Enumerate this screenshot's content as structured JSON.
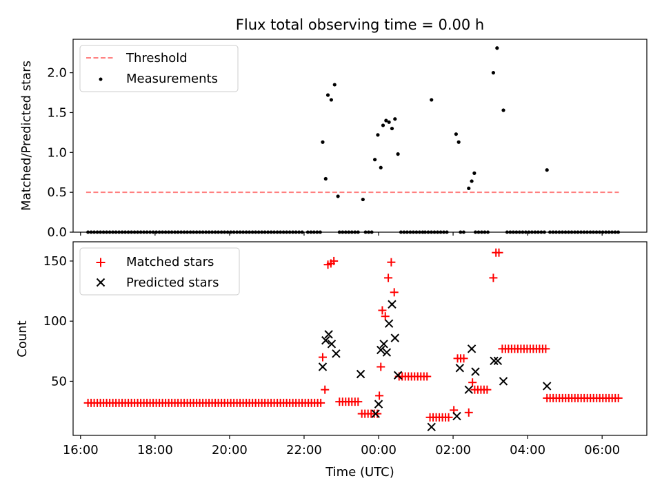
{
  "figure_title": "Flux total observing time = 0.00 h",
  "chart_data": [
    {
      "type": "scatter",
      "title": "Flux total observing time = 0.00 h",
      "xlabel": "",
      "ylabel": "Matched/Predicted stars",
      "xlim": [
        15.8,
        31.2
      ],
      "ylim": [
        0.0,
        2.42
      ],
      "yticks": [
        0.0,
        0.5,
        1.0,
        1.5,
        2.0
      ],
      "ytick_labels": [
        "0.0",
        "0.5",
        "1.0",
        "1.5",
        "2.0"
      ],
      "legend_position": "upper-left",
      "threshold": {
        "name": "Threshold",
        "value": 0.5,
        "x": [
          16.15,
          30.45
        ],
        "color": "#ff7f7f"
      },
      "series": [
        {
          "name": "Measurements",
          "color": "#000000",
          "points": [
            [
              22.5,
              1.13
            ],
            [
              22.58,
              0.67
            ],
            [
              22.64,
              1.72
            ],
            [
              22.73,
              1.66
            ],
            [
              22.82,
              1.85
            ],
            [
              22.91,
              0.45
            ],
            [
              23.58,
              0.41
            ],
            [
              23.9,
              0.91
            ],
            [
              23.98,
              1.22
            ],
            [
              24.06,
              0.81
            ],
            [
              24.12,
              1.34
            ],
            [
              24.2,
              1.4
            ],
            [
              24.28,
              1.38
            ],
            [
              24.36,
              1.3
            ],
            [
              24.44,
              1.42
            ],
            [
              24.52,
              0.98
            ],
            [
              25.42,
              1.66
            ],
            [
              26.08,
              1.23
            ],
            [
              26.15,
              1.13
            ],
            [
              26.42,
              0.55
            ],
            [
              26.5,
              0.64
            ],
            [
              26.57,
              0.74
            ],
            [
              27.08,
              2.0
            ],
            [
              27.18,
              2.31
            ],
            [
              27.35,
              1.53
            ],
            [
              28.52,
              0.78
            ]
          ],
          "zero_ranges": [
            [
              16.2,
              22.0
            ],
            [
              22.1,
              22.45
            ],
            [
              22.95,
              23.5
            ],
            [
              23.65,
              23.85
            ],
            [
              24.6,
              25.25
            ],
            [
              25.25,
              25.9
            ],
            [
              26.2,
              26.35
            ],
            [
              26.6,
              27.0
            ],
            [
              27.45,
              28.45
            ],
            [
              28.6,
              30.5
            ]
          ]
        }
      ]
    },
    {
      "type": "scatter",
      "title": "",
      "xlabel": "Time (UTC)",
      "ylabel": "Count",
      "xlim": [
        15.8,
        31.2
      ],
      "ylim": [
        5,
        166
      ],
      "xticks": [
        16,
        18,
        20,
        22,
        24,
        26,
        28,
        30
      ],
      "xtick_labels": [
        "16:00",
        "18:00",
        "20:00",
        "22:00",
        "00:00",
        "02:00",
        "04:00",
        "06:00"
      ],
      "yticks": [
        50,
        100,
        150
      ],
      "ytick_labels": [
        "50",
        "100",
        "150"
      ],
      "legend_position": "upper-left",
      "series": [
        {
          "name": "Matched stars",
          "marker": "plus",
          "color": "#ff0000",
          "points": [
            [
              22.5,
              70
            ],
            [
              22.56,
              43
            ],
            [
              22.64,
              147
            ],
            [
              22.72,
              148
            ],
            [
              22.8,
              150
            ],
            [
              24.02,
              38
            ],
            [
              24.06,
              62
            ],
            [
              24.1,
              109
            ],
            [
              24.18,
              104
            ],
            [
              24.26,
              136
            ],
            [
              24.34,
              149
            ],
            [
              24.42,
              124
            ],
            [
              26.02,
              26
            ],
            [
              26.42,
              24
            ],
            [
              26.52,
              49
            ],
            [
              27.08,
              136
            ],
            [
              27.15,
              157
            ],
            [
              27.23,
              157
            ]
          ],
          "runs": [
            {
              "x": [
                16.2,
                22.45
              ],
              "y": 32
            },
            {
              "x": [
                22.95,
                23.45
              ],
              "y": 33
            },
            {
              "x": [
                23.55,
                24.02
              ],
              "y": 23
            },
            {
              "x": [
                24.55,
                25.3
              ],
              "y": 54
            },
            {
              "x": [
                25.38,
                25.95
              ],
              "y": 20
            },
            {
              "x": [
                26.12,
                26.35
              ],
              "y": 69
            },
            {
              "x": [
                26.58,
                26.98
              ],
              "y": 43
            },
            {
              "x": [
                27.32,
                28.5
              ],
              "y": 77
            },
            {
              "x": [
                28.52,
                30.5
              ],
              "y": 36
            }
          ]
        },
        {
          "name": "Predicted stars",
          "marker": "x",
          "color": "#000000",
          "points": [
            [
              22.5,
              62
            ],
            [
              22.58,
              84
            ],
            [
              22.66,
              89
            ],
            [
              22.74,
              81
            ],
            [
              22.86,
              73
            ],
            [
              23.52,
              56
            ],
            [
              23.92,
              23
            ],
            [
              24.0,
              31
            ],
            [
              24.06,
              76
            ],
            [
              24.14,
              81
            ],
            [
              24.22,
              74
            ],
            [
              24.28,
              98
            ],
            [
              24.36,
              114
            ],
            [
              24.44,
              86
            ],
            [
              24.52,
              55
            ],
            [
              25.42,
              12
            ],
            [
              26.1,
              21
            ],
            [
              26.18,
              61
            ],
            [
              26.42,
              43
            ],
            [
              26.5,
              77
            ],
            [
              26.6,
              58
            ],
            [
              27.1,
              67
            ],
            [
              27.2,
              67
            ],
            [
              27.35,
              50
            ],
            [
              28.52,
              46
            ]
          ]
        }
      ]
    }
  ]
}
